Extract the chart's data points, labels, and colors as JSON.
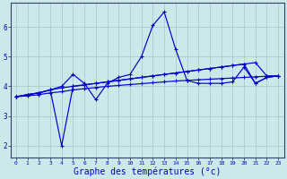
{
  "background_color": "#cce8ea",
  "grid_color": "#aacccc",
  "line_color": "#0000cc",
  "xlabel": "Graphe des températures (°c)",
  "xlabel_fontsize": 7,
  "yticks": [
    2,
    3,
    4,
    5,
    6
  ],
  "xticks": [
    0,
    1,
    2,
    3,
    4,
    5,
    6,
    7,
    8,
    9,
    10,
    11,
    12,
    13,
    14,
    15,
    16,
    17,
    18,
    19,
    20,
    21,
    22,
    23
  ],
  "xlim": [
    -0.5,
    23.5
  ],
  "ylim": [
    1.6,
    6.8
  ],
  "line1_x": [
    0,
    1,
    2,
    3,
    4,
    5,
    6,
    7,
    8,
    9,
    10,
    11,
    12,
    13,
    14,
    15,
    16,
    17,
    18,
    19,
    20,
    21,
    22,
    23
  ],
  "line1_y": [
    3.65,
    3.72,
    3.78,
    3.88,
    4.0,
    4.4,
    4.1,
    3.55,
    4.1,
    4.3,
    4.4,
    5.0,
    6.05,
    6.5,
    5.25,
    4.2,
    4.1,
    4.1,
    4.1,
    4.15,
    4.65,
    4.1,
    4.3,
    4.35
  ],
  "line2_x": [
    0,
    1,
    2,
    3,
    4,
    5,
    6,
    7,
    8,
    9,
    10,
    11,
    12,
    13,
    14,
    15,
    16,
    17,
    18,
    19,
    20,
    21,
    22,
    23
  ],
  "line2_y": [
    3.65,
    3.72,
    3.78,
    3.88,
    2.0,
    4.0,
    4.05,
    4.1,
    4.15,
    4.2,
    4.25,
    4.3,
    4.35,
    4.4,
    4.45,
    4.5,
    4.55,
    4.6,
    4.65,
    4.7,
    4.75,
    4.1,
    4.3,
    4.35
  ],
  "line3_x": [
    0,
    1,
    2,
    3,
    4,
    5,
    6,
    7,
    8,
    9,
    10,
    11,
    12,
    13,
    14,
    15,
    16,
    17,
    18,
    19,
    20,
    21,
    22,
    23
  ],
  "line3_y": [
    3.65,
    3.72,
    3.78,
    3.88,
    3.95,
    4.0,
    4.05,
    4.1,
    4.15,
    4.2,
    4.25,
    4.3,
    4.35,
    4.4,
    4.45,
    4.5,
    4.55,
    4.6,
    4.65,
    4.7,
    4.75,
    4.8,
    4.35,
    4.35
  ],
  "line4_x": [
    0,
    1,
    2,
    3,
    4,
    5,
    6,
    7,
    8,
    9,
    10,
    11,
    12,
    13,
    14,
    15,
    16,
    17,
    18,
    19,
    20,
    21,
    22,
    23
  ],
  "line4_y": [
    3.65,
    3.68,
    3.72,
    3.78,
    3.82,
    3.88,
    3.92,
    3.96,
    4.0,
    4.03,
    4.06,
    4.09,
    4.12,
    4.15,
    4.18,
    4.2,
    4.22,
    4.24,
    4.26,
    4.28,
    4.3,
    4.32,
    4.34,
    4.35
  ]
}
